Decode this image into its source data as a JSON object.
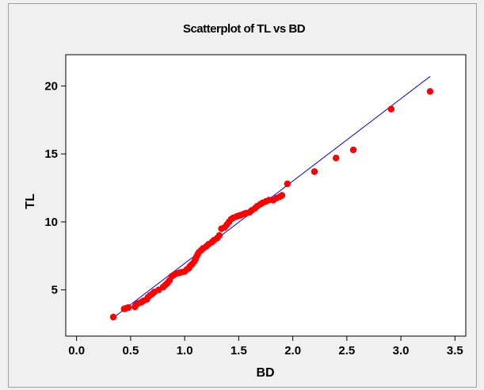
{
  "chart_data": {
    "type": "scatter",
    "title": "Scatterplot of TL vs BD",
    "xlabel": "BD",
    "ylabel": "TL",
    "xlim": [
      -0.1,
      3.6
    ],
    "ylim": [
      1.6,
      22.3
    ],
    "x_ticks": [
      "0.0",
      "0.5",
      "1.0",
      "1.5",
      "2.0",
      "2.5",
      "3.0",
      "3.5"
    ],
    "y_ticks": [
      "5",
      "10",
      "15",
      "20"
    ],
    "grid": false,
    "colors": {
      "points": "#ff0000",
      "fit_line": "#0000ff",
      "plot_background": "#ffffff",
      "frame_background": "#f0f0f0"
    },
    "fit_line": {
      "x": [
        0.34,
        3.27
      ],
      "y": [
        2.95,
        20.7
      ]
    },
    "series": [
      {
        "points": [
          [
            0.34,
            3.0
          ],
          [
            0.44,
            3.6
          ],
          [
            0.46,
            3.65
          ],
          [
            0.48,
            3.7
          ],
          [
            0.54,
            3.75
          ],
          [
            0.55,
            3.9
          ],
          [
            0.57,
            4.0
          ],
          [
            0.6,
            4.1
          ],
          [
            0.62,
            4.2
          ],
          [
            0.65,
            4.3
          ],
          [
            0.66,
            4.45
          ],
          [
            0.68,
            4.6
          ],
          [
            0.7,
            4.7
          ],
          [
            0.72,
            4.85
          ],
          [
            0.76,
            5.0
          ],
          [
            0.8,
            5.2
          ],
          [
            0.82,
            5.35
          ],
          [
            0.84,
            5.5
          ],
          [
            0.86,
            5.7
          ],
          [
            0.88,
            6.0
          ],
          [
            0.9,
            6.1
          ],
          [
            0.92,
            6.2
          ],
          [
            0.95,
            6.25
          ],
          [
            0.97,
            6.3
          ],
          [
            1.0,
            6.35
          ],
          [
            1.02,
            6.5
          ],
          [
            1.04,
            6.6
          ],
          [
            1.05,
            6.75
          ],
          [
            1.07,
            6.9
          ],
          [
            1.09,
            7.1
          ],
          [
            1.1,
            7.25
          ],
          [
            1.11,
            7.45
          ],
          [
            1.12,
            7.6
          ],
          [
            1.13,
            7.75
          ],
          [
            1.15,
            7.9
          ],
          [
            1.17,
            8.05
          ],
          [
            1.2,
            8.2
          ],
          [
            1.22,
            8.35
          ],
          [
            1.25,
            8.5
          ],
          [
            1.27,
            8.65
          ],
          [
            1.3,
            8.8
          ],
          [
            1.32,
            9.0
          ],
          [
            1.34,
            9.5
          ],
          [
            1.37,
            9.6
          ],
          [
            1.39,
            9.8
          ],
          [
            1.41,
            10.0
          ],
          [
            1.43,
            10.2
          ],
          [
            1.45,
            10.3
          ],
          [
            1.48,
            10.4
          ],
          [
            1.5,
            10.45
          ],
          [
            1.52,
            10.5
          ],
          [
            1.55,
            10.6
          ],
          [
            1.57,
            10.65
          ],
          [
            1.6,
            10.7
          ],
          [
            1.62,
            10.85
          ],
          [
            1.65,
            11.0
          ],
          [
            1.67,
            11.15
          ],
          [
            1.7,
            11.3
          ],
          [
            1.72,
            11.4
          ],
          [
            1.75,
            11.5
          ],
          [
            1.78,
            11.6
          ],
          [
            1.82,
            11.6
          ],
          [
            1.85,
            11.75
          ],
          [
            1.88,
            11.85
          ],
          [
            1.9,
            11.95
          ],
          [
            1.95,
            12.8
          ],
          [
            2.2,
            13.7
          ],
          [
            2.4,
            14.7
          ],
          [
            2.56,
            15.3
          ],
          [
            2.91,
            18.3
          ],
          [
            3.27,
            19.6
          ]
        ]
      }
    ]
  }
}
